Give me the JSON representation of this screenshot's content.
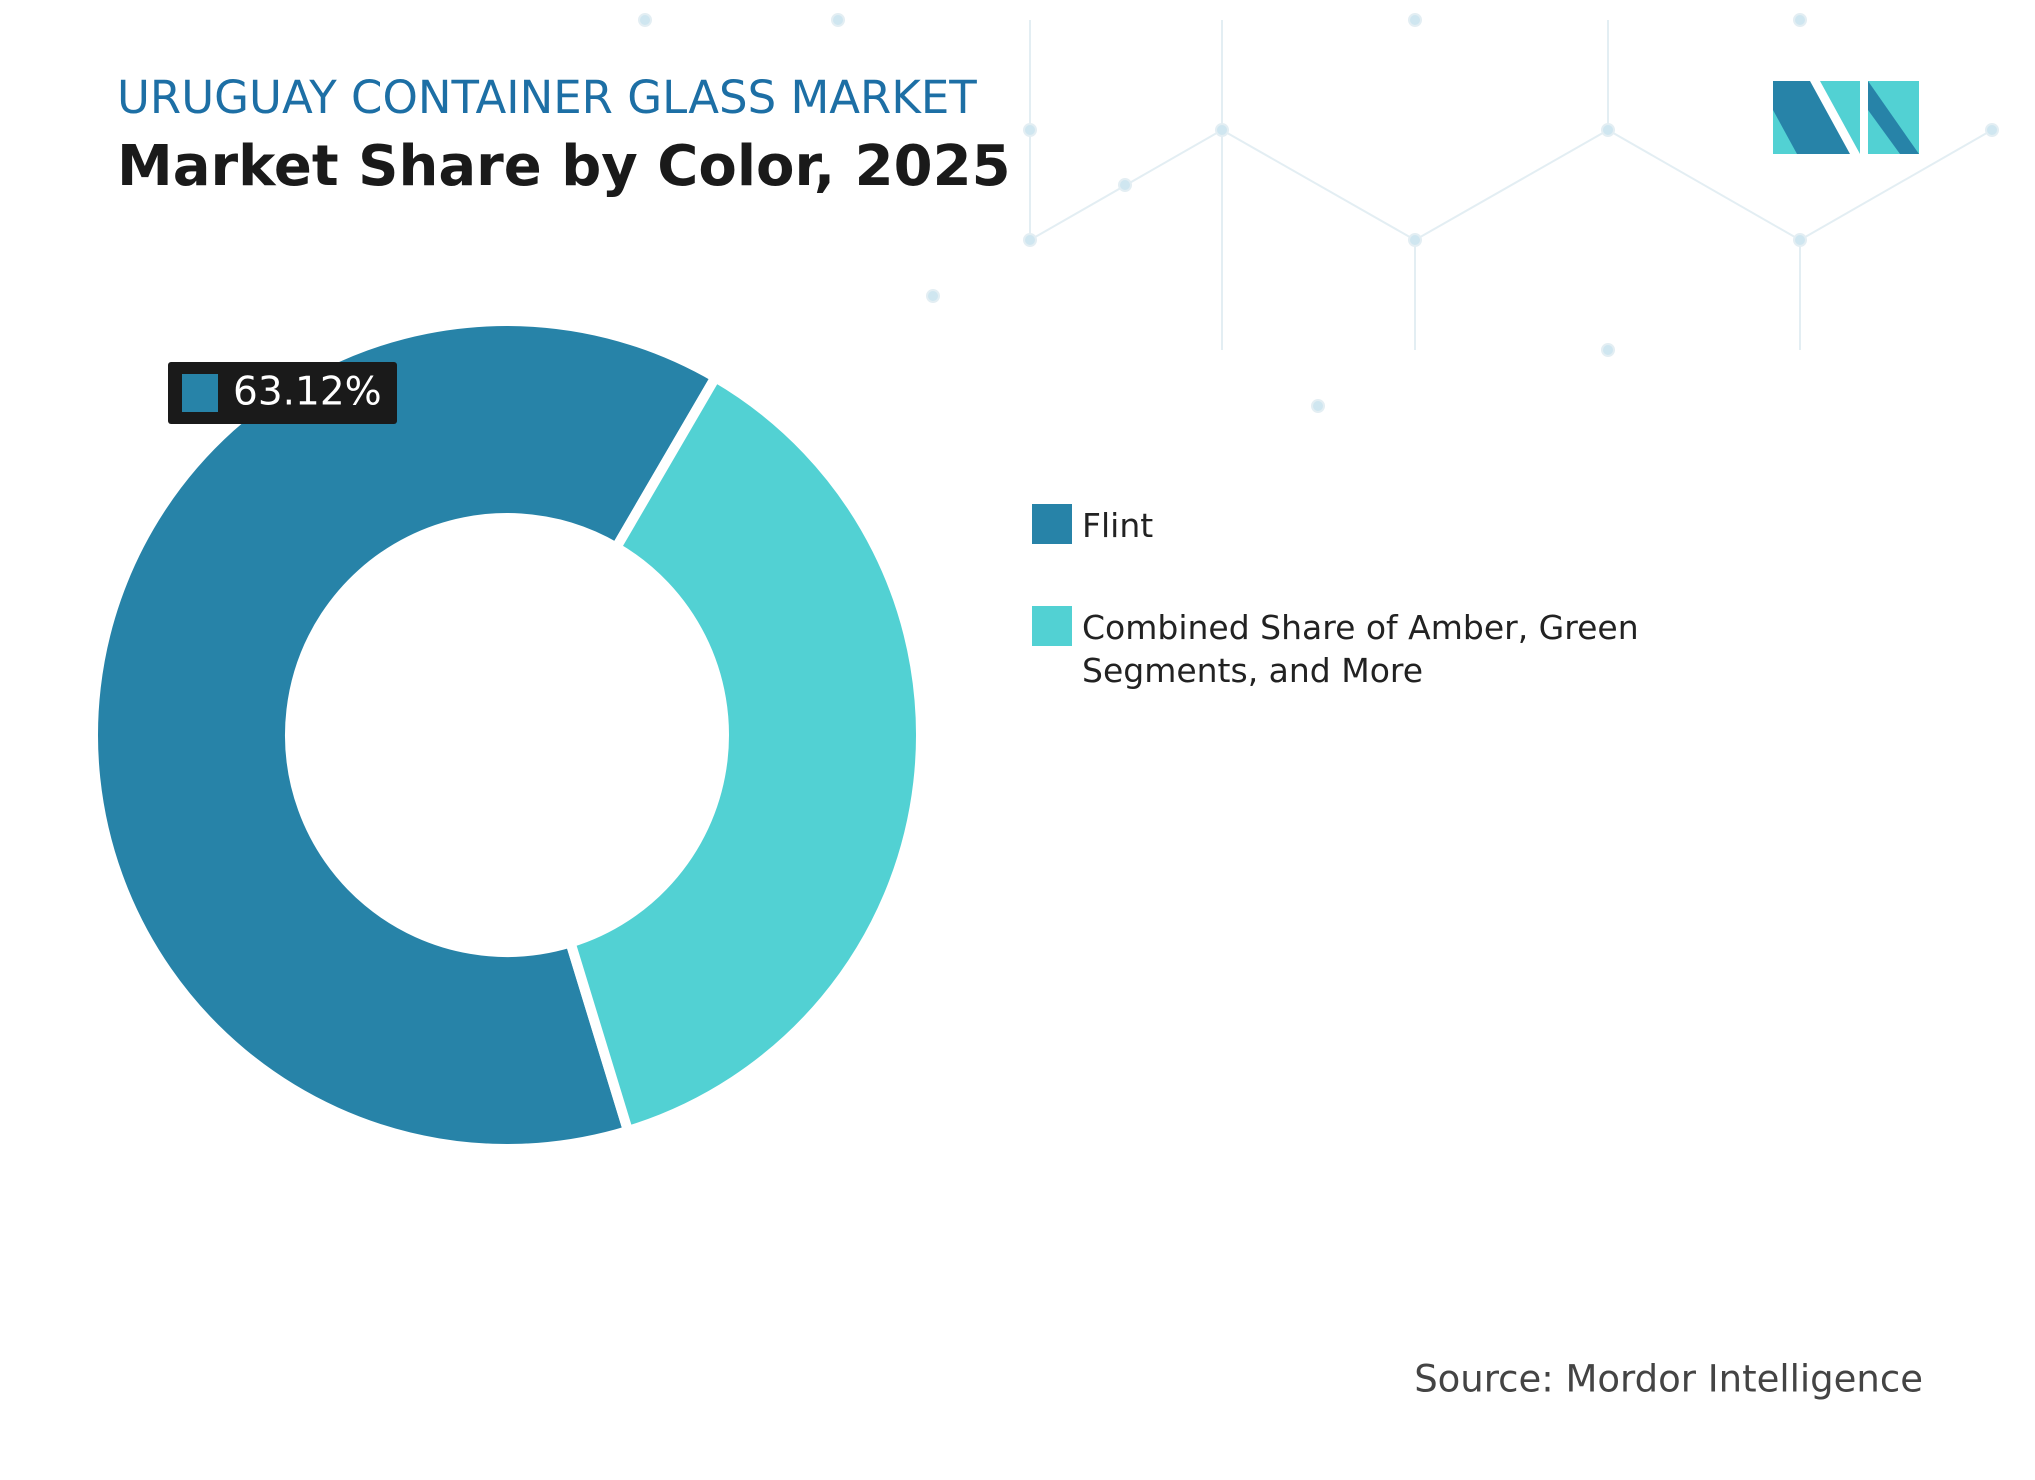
{
  "chart_data": {
    "type": "donut",
    "supertitle": "URUGUAY CONTAINER GLASS MARKET",
    "title": "Market Share by Color, 2025",
    "categories": [
      "Flint",
      "Combined Share of Amber, Green Segments, and More"
    ],
    "values": [
      63.12,
      36.88
    ],
    "value_labels": [
      "63.12%",
      null
    ],
    "colors": [
      "#2783a8",
      "#52d1d3"
    ],
    "legend": "right",
    "source": "Source: Mordor Intelligence"
  }
}
